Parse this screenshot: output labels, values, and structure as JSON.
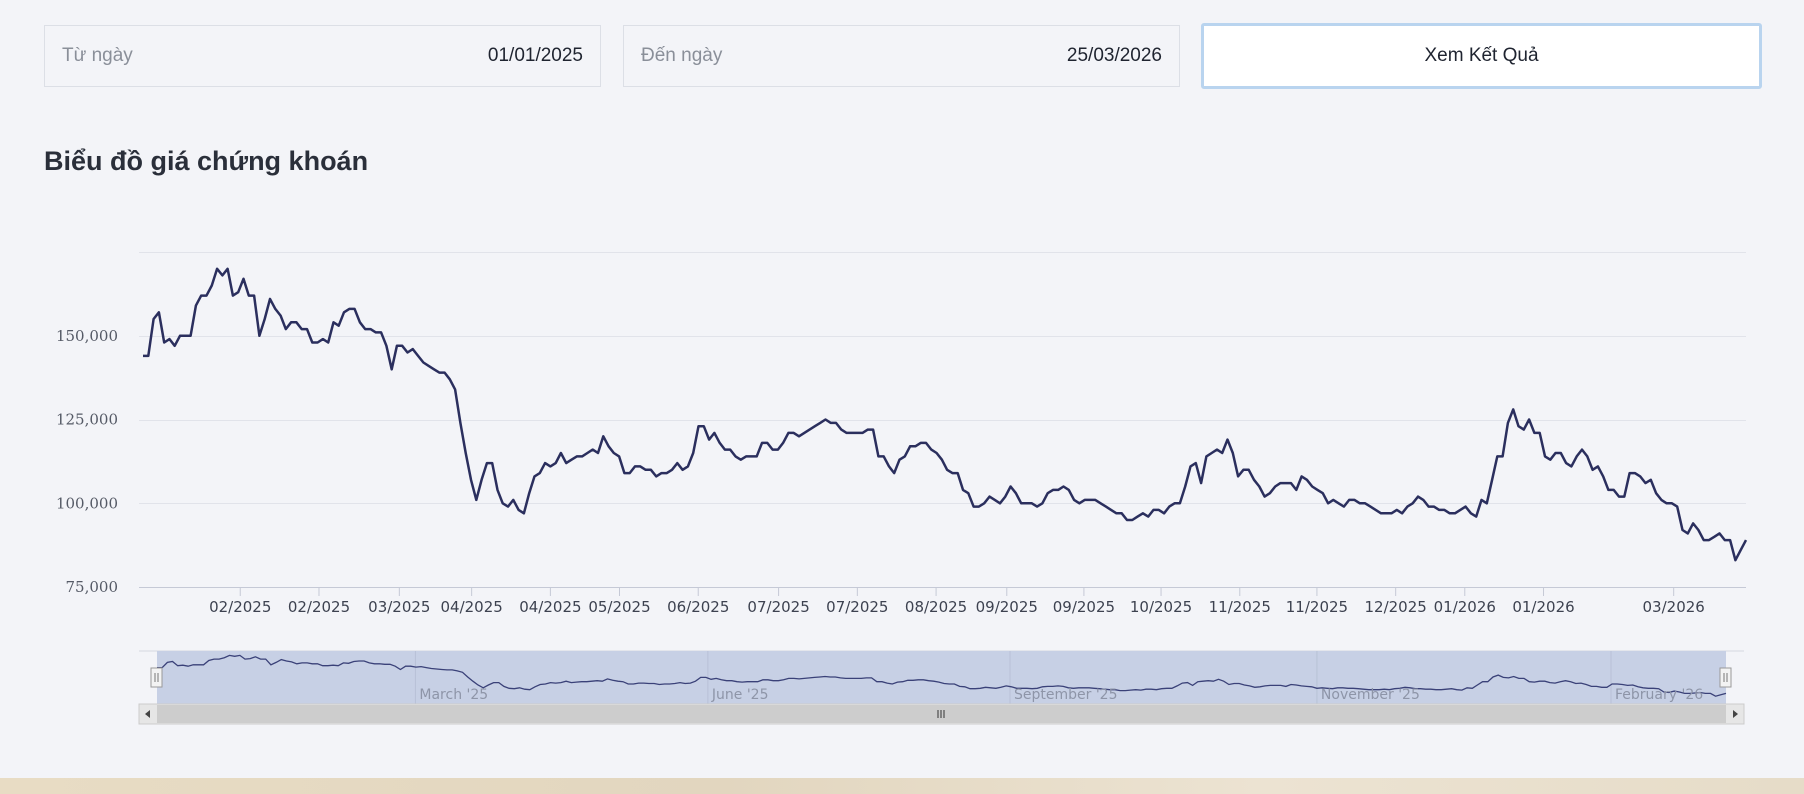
{
  "filters": {
    "from_label": "Từ ngày",
    "from_value": "01/01/2025",
    "to_label": "Đến ngày",
    "to_value": "25/03/2026",
    "submit_label": "Xem Kết Quả"
  },
  "chart_title": "Biểu đồ giá chứng khoán",
  "chart_data": {
    "type": "line",
    "title": "Biểu đồ giá chứng khoán",
    "xlabel": "",
    "ylabel": "",
    "ylim": [
      75000,
      175000
    ],
    "y_ticks": [
      75000,
      100000,
      125000,
      150000
    ],
    "y_tick_labels": [
      "75,000",
      "100,000",
      "125,000",
      "150,000"
    ],
    "x_tick_labels": [
      "02/2025",
      "02/2025",
      "03/2025",
      "04/2025",
      "04/2025",
      "05/2025",
      "06/2025",
      "07/2025",
      "07/2025",
      "08/2025",
      "09/2025",
      "09/2025",
      "10/2025",
      "11/2025",
      "11/2025",
      "12/2025",
      "01/2026",
      "01/2026",
      "03/2026"
    ],
    "x_tick_positions": [
      0.063,
      0.112,
      0.162,
      0.207,
      0.256,
      0.299,
      0.348,
      0.398,
      0.447,
      0.496,
      0.54,
      0.588,
      0.636,
      0.685,
      0.733,
      0.782,
      0.825,
      0.874,
      0.955
    ],
    "grid": true,
    "legend": "none",
    "line_color": "#2b2f5e",
    "series": [
      {
        "values": [
          144000,
          144000,
          155000,
          157000,
          148000,
          149000,
          147000,
          150000,
          150000,
          150000,
          159000,
          162000,
          162000,
          165000,
          170000,
          168000,
          170000,
          162000,
          163000,
          167000,
          162000,
          162000,
          150000,
          155000,
          161000,
          158000,
          156000,
          152000,
          154000,
          154000,
          152000,
          152000,
          148000,
          148000,
          149000,
          148000,
          154000,
          153000,
          157000,
          158000,
          158000,
          154000,
          152000,
          152000,
          151000,
          151000,
          147000,
          140000,
          147000,
          147000,
          145000,
          146000,
          144000,
          142000,
          141000,
          140000,
          139000,
          139000,
          137000,
          134000,
          124000,
          115000,
          107000,
          101000,
          107000,
          112000,
          112000,
          104000,
          100000,
          99000,
          101000,
          98000,
          97000,
          103000,
          108000,
          109000,
          112000,
          111000,
          112000,
          115000,
          112000,
          113000,
          114000,
          114000,
          115000,
          116000,
          115000,
          120000,
          117000,
          115000,
          114000,
          109000,
          109000,
          111000,
          111000,
          110000,
          110000,
          108000,
          109000,
          109000,
          110000,
          112000,
          110000,
          111000,
          115000,
          123000,
          123000,
          119000,
          121000,
          118000,
          116000,
          116000,
          114000,
          113000,
          114000,
          114000,
          114000,
          118000,
          118000,
          116000,
          116000,
          118000,
          121000,
          121000,
          120000,
          121000,
          122000,
          123000,
          124000,
          125000,
          124000,
          124000,
          122000,
          121000,
          121000,
          121000,
          121000,
          122000,
          122000,
          114000,
          114000,
          111000,
          109000,
          113000,
          114000,
          117000,
          117000,
          118000,
          118000,
          116000,
          115000,
          113000,
          110000,
          109000,
          109000,
          104000,
          103000,
          99000,
          99000,
          100000,
          102000,
          101000,
          100000,
          102000,
          105000,
          103000,
          100000,
          100000,
          100000,
          99000,
          100000,
          103000,
          104000,
          104000,
          105000,
          104000,
          101000,
          100000,
          101000,
          101000,
          101000,
          100000,
          99000,
          98000,
          97000,
          97000,
          95000,
          95000,
          96000,
          97000,
          96000,
          98000,
          98000,
          97000,
          99000,
          100000,
          100000,
          105000,
          111000,
          112000,
          106000,
          114000,
          115000,
          116000,
          115000,
          119000,
          115000,
          108000,
          110000,
          110000,
          107000,
          105000,
          102000,
          103000,
          105000,
          106000,
          106000,
          106000,
          104000,
          108000,
          107000,
          105000,
          104000,
          103000,
          100000,
          101000,
          100000,
          99000,
          101000,
          101000,
          100000,
          100000,
          99000,
          98000,
          97000,
          97000,
          97000,
          98000,
          97000,
          99000,
          100000,
          102000,
          101000,
          99000,
          99000,
          98000,
          98000,
          97000,
          97000,
          98000,
          99000,
          97000,
          96000,
          101000,
          100000,
          107000,
          114000,
          114000,
          124000,
          128000,
          123000,
          122000,
          125000,
          121000,
          121000,
          114000,
          113000,
          115000,
          115000,
          112000,
          111000,
          114000,
          116000,
          114000,
          110000,
          111000,
          108000,
          104000,
          104000,
          102000,
          102000,
          109000,
          109000,
          108000,
          106000,
          107000,
          103000,
          101000,
          100000,
          100000,
          99000,
          92000,
          91000,
          94000,
          92000,
          89000,
          89000,
          90000,
          91000,
          89000,
          89000,
          83000,
          86000,
          89000
        ]
      }
    ],
    "navigator": {
      "labels": [
        "March '25",
        "June '25",
        "September '25",
        "November '25",
        "February '26"
      ],
      "label_positions": [
        0.172,
        0.354,
        0.542,
        0.733,
        0.916
      ]
    }
  }
}
